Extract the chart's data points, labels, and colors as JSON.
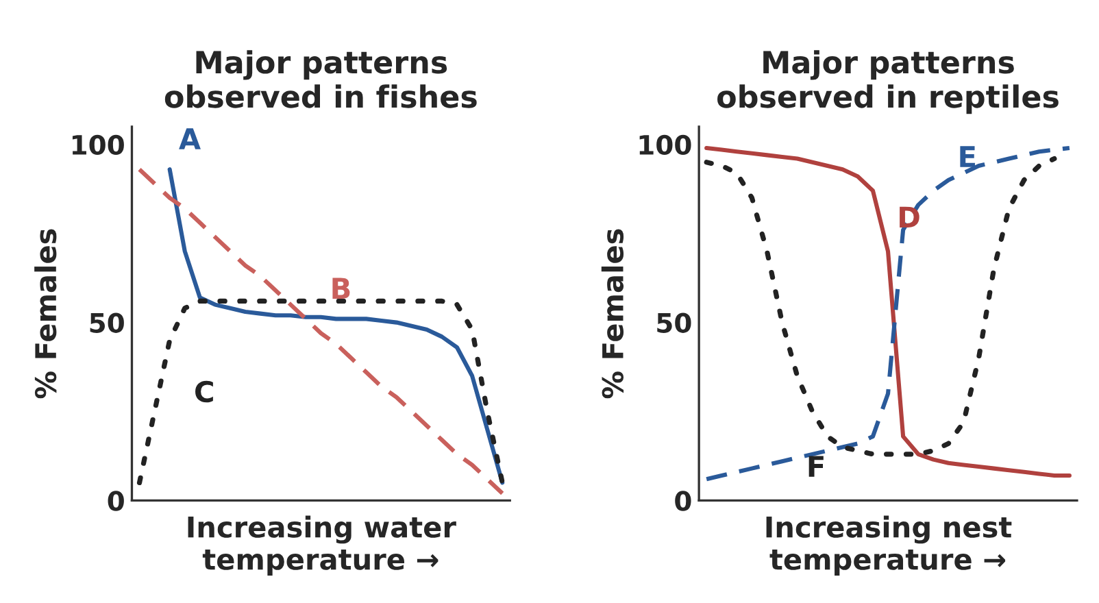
{
  "chart_data": [
    {
      "type": "line",
      "title": "Major patterns\nobserved in fishes",
      "xlabel": "Increasing water\ntemperature →",
      "ylabel": "% Females",
      "categories": [
        null,
        null,
        null,
        null,
        null,
        null,
        null,
        null,
        null,
        null,
        null,
        null,
        null,
        null,
        null,
        null,
        null,
        null,
        null,
        null,
        null,
        null,
        null,
        null,
        null
      ],
      "ylim": [
        0,
        105
      ],
      "yticks": [
        0,
        50,
        100
      ],
      "tick_labels": "y",
      "series": [
        {
          "name": "A",
          "color": "#2a5a9a",
          "line_style": "solid",
          "values": [
            null,
            null,
            93,
            70,
            57,
            55,
            54,
            53,
            52.5,
            52,
            52,
            51.5,
            51.5,
            51,
            51,
            51,
            50.5,
            50,
            49,
            48,
            46,
            43,
            35,
            20,
            5
          ]
        },
        {
          "name": "B",
          "color": "#c9605c",
          "line_style": "dashed",
          "values": [
            93,
            89,
            85,
            82,
            78,
            74,
            70,
            66,
            63,
            59,
            55,
            51,
            47,
            44,
            40,
            36,
            32,
            29,
            25,
            21,
            17,
            13,
            10,
            6,
            2
          ]
        },
        {
          "name": "C",
          "color": "#222222",
          "line_style": "dotted",
          "values": [
            5,
            25,
            45,
            54,
            56,
            56,
            56,
            56,
            56,
            56,
            56,
            56,
            56,
            56,
            56,
            56,
            56,
            56,
            56,
            56,
            56,
            55,
            48,
            25,
            5
          ]
        }
      ]
    },
    {
      "type": "line",
      "title": "Major patterns\nobserved in reptiles",
      "xlabel": "Increasing nest\ntemperature →",
      "ylabel": "% Females",
      "categories": [
        null,
        null,
        null,
        null,
        null,
        null,
        null,
        null,
        null,
        null,
        null,
        null,
        null,
        null,
        null,
        null,
        null,
        null,
        null,
        null,
        null,
        null,
        null,
        null,
        null
      ],
      "ylim": [
        0,
        105
      ],
      "yticks": [
        0,
        50,
        100
      ],
      "tick_labels": "y",
      "series": [
        {
          "name": "D",
          "color": "#b0413e",
          "line_style": "solid",
          "values": [
            99,
            98.5,
            98,
            97.5,
            97,
            96.5,
            96,
            95,
            94,
            93,
            91,
            87,
            70,
            18,
            13,
            11.5,
            10.5,
            10,
            9.5,
            9,
            8.5,
            8,
            7.5,
            7,
            7
          ]
        },
        {
          "name": "E",
          "color": "#2a5a9a",
          "line_style": "dashed",
          "values": [
            6,
            7,
            8,
            9,
            10,
            11,
            12,
            13,
            14,
            15,
            16,
            18,
            30,
            76,
            83,
            87,
            90,
            92,
            94,
            95,
            96,
            97,
            98,
            98.5,
            99
          ]
        },
        {
          "name": "F",
          "color": "#222222",
          "line_style": "dotted",
          "values": [
            95,
            94,
            92,
            85,
            70,
            50,
            35,
            25,
            18,
            15,
            14,
            13,
            13,
            13,
            13,
            14,
            16,
            22,
            40,
            65,
            82,
            90,
            94,
            96,
            null
          ]
        }
      ]
    }
  ]
}
